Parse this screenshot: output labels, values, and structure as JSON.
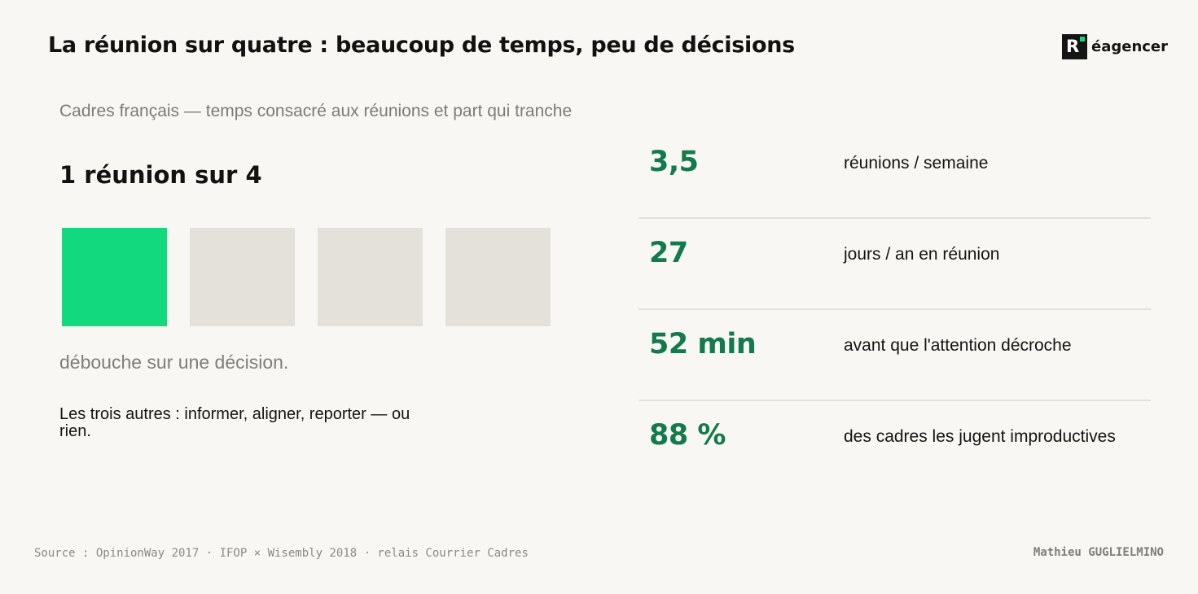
{
  "header": {
    "title": "La réunion sur quatre : beaucoup de temps, peu de décisions",
    "logo_mark": "R",
    "logo_text": "éagencer",
    "accent_color": "#12d97e"
  },
  "left": {
    "subtitle": "Cadres français — temps consacré aux réunions et part qui tranche",
    "ratio_label": "1 réunion sur 4",
    "squares": {
      "total": 4,
      "highlighted": 1,
      "highlight_color": "#12d97e",
      "muted_color": "#e3e1da"
    },
    "lead": "débouche sur une décision.",
    "note": "Les trois autres : informer, aligner, reporter — ou rien."
  },
  "stats": [
    {
      "value": "3,5",
      "label": "réunions / semaine"
    },
    {
      "value": "27",
      "label": "jours / an en réunion"
    },
    {
      "value": "52 min",
      "label": "avant que l'attention décroche"
    },
    {
      "value": "88 %",
      "label": "des cadres les jugent improductives"
    }
  ],
  "stat_value_color": "#137a4b",
  "footer": {
    "source": "Source : OpinionWay 2017 · IFOP × Wisembly 2018 · relais Courrier Cadres",
    "author": "Mathieu GUGLIELMINO"
  }
}
